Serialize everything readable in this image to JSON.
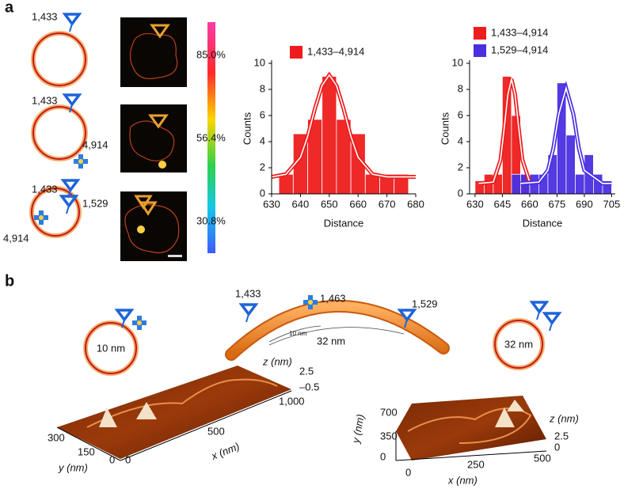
{
  "panel_labels": [
    "a",
    "b"
  ],
  "panel_a": {
    "diagrams": [
      {
        "labels": [
          "1,433"
        ]
      },
      {
        "labels": [
          "1,433",
          "4,914"
        ]
      },
      {
        "labels": [
          "1,433",
          "1,529",
          "4,914"
        ]
      }
    ],
    "colorbar_labels": [
      "85.0%",
      "56.4%",
      "30.8%"
    ]
  },
  "chart_data": [
    {
      "type": "histogram",
      "xlabel": "Distance",
      "ylabel": "Counts",
      "bins": [
        632.5,
        637.5,
        642.5,
        647.5,
        652.5,
        657.5,
        662.5,
        667.5,
        672.5,
        677.5
      ],
      "series": [
        {
          "name": "1,433–4,914",
          "color": "#ee1c1c",
          "values": [
            1.5,
            4.6,
            5.7,
            9,
            5.7,
            4.6,
            1.5,
            1.5,
            1.5
          ],
          "fit": {
            "x": [
              630,
              635,
              640,
              642.5,
              645,
              647.5,
              650,
              652.5,
              655,
              657.5,
              660,
              665,
              670,
              675,
              680
            ],
            "values": [
              1.3,
              1.5,
              2.8,
              4.4,
              6.5,
              8.3,
              9.1,
              8.3,
              6.5,
              4.4,
              2.8,
              1.5,
              1.3,
              1.3,
              1.3
            ]
          }
        }
      ],
      "xlim": [
        630,
        680
      ],
      "ylim": [
        0,
        10
      ],
      "xticks": [
        630,
        640,
        650,
        660,
        670,
        680
      ],
      "yticks": [
        0,
        2,
        4,
        6,
        8,
        10
      ]
    },
    {
      "type": "histogram",
      "xlabel": "Distance",
      "ylabel": "Counts",
      "bins": [
        630,
        635,
        640,
        645,
        650,
        655,
        660,
        665,
        670,
        675,
        680,
        685,
        690,
        695,
        700,
        705
      ],
      "series": [
        {
          "name": "1,433–4,914",
          "color": "#ee1c1c",
          "values": [
            1,
            1.5,
            1.5,
            9,
            6,
            1.5,
            0,
            0,
            0,
            0,
            0,
            0,
            0,
            0,
            0
          ],
          "fit": {
            "x": [
              632,
              640,
              644,
              646,
              648,
              650,
              652,
              654,
              656,
              660
            ],
            "values": [
              0.8,
              0.9,
              2.6,
              5.0,
              7.6,
              8.8,
              7.6,
              5.0,
              2.6,
              0.9
            ]
          }
        },
        {
          "name": "1,529–4,914",
          "color": "#4a2fe0",
          "values": [
            0,
            0,
            0,
            0,
            1.5,
            1.5,
            1.5,
            1.5,
            3,
            8.5,
            4.5,
            1.5,
            3,
            1.5,
            1
          ],
          "fit": {
            "x": [
              655,
              665,
              670,
              673,
              676,
              680,
              684,
              687,
              690,
              700,
              705
            ],
            "values": [
              0.8,
              0.9,
              1.8,
              3.5,
              6.1,
              8.1,
              6.1,
              3.5,
              1.8,
              0.8,
              0.8
            ]
          }
        }
      ],
      "xlim": [
        627,
        707
      ],
      "ylim": [
        0,
        10
      ],
      "xticks": [
        630,
        645,
        660,
        675,
        690,
        705
      ],
      "yticks": [
        0,
        2,
        4,
        6,
        8,
        10
      ]
    }
  ],
  "panel_b": {
    "sites": [
      "1,433",
      "1,463",
      "1,529"
    ],
    "arc_labels": [
      "10 nm",
      "32 nm"
    ],
    "circles": [
      "10 nm",
      "32 nm"
    ],
    "afm_left": {
      "z_label": "z (nm)",
      "z_ticks": [
        "2.5",
        "–0.5"
      ],
      "x_ticks": [
        "1,000",
        "500",
        "0"
      ],
      "x_label": "x (nm)",
      "y_ticks": [
        "300",
        "150",
        "0"
      ],
      "y_label": "y (nm)"
    },
    "afm_right": {
      "y_ticks": [
        "700",
        "350",
        "0"
      ],
      "y_label": "y (nm)",
      "x_ticks": [
        "0",
        "250",
        "500"
      ],
      "x_label": "x (nm)",
      "z_label": "z (nm)",
      "z_ticks": [
        "2.5",
        "0"
      ]
    }
  }
}
